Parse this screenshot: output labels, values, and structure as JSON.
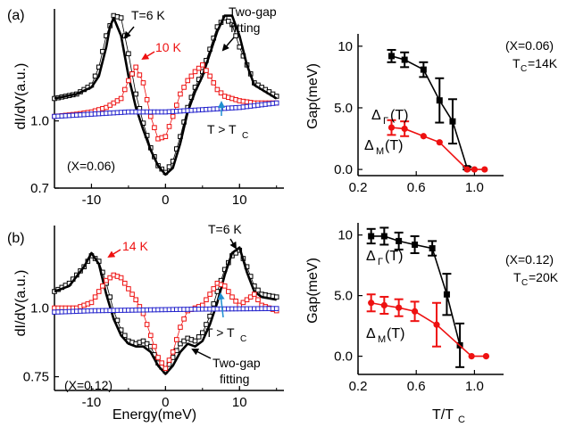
{
  "colors": {
    "black": "#000000",
    "red": "#ee1111",
    "blue": "#2222cc",
    "arrow_red": "#ee1111",
    "arrow_blue": "#1f8fd0"
  },
  "chart_data": [
    {
      "id": "a-left",
      "type": "line",
      "panel_label": "(a)",
      "xlim": [
        -15,
        16
      ],
      "ylim": [
        0.7,
        1.5
      ],
      "x_ticks": [
        -10,
        0,
        10
      ],
      "y_ticks": [
        {
          "value": 1.0,
          "label": "1.0"
        },
        {
          "value": 0.7,
          "label": "0.7"
        }
      ],
      "ylabel": "dI/dV(a.u.)",
      "annotations": [
        "T=6 K",
        "Two-gap",
        "fitting",
        "10 K",
        "T > T",
        "C",
        "(X=0.06)"
      ],
      "series": [
        {
          "role": "data-6K",
          "color": "#000000",
          "marker": "open-square",
          "x": [
            -15,
            -12,
            -10,
            -9,
            -8,
            -7,
            -6,
            -5,
            -4,
            -3,
            -2,
            -1,
            0,
            1,
            2,
            3,
            4,
            5,
            6,
            7,
            8,
            9,
            10,
            12,
            15
          ],
          "y": [
            1.1,
            1.12,
            1.16,
            1.24,
            1.38,
            1.47,
            1.46,
            1.3,
            1.12,
            0.99,
            0.88,
            0.8,
            0.77,
            0.82,
            0.93,
            1.06,
            1.15,
            1.22,
            1.32,
            1.42,
            1.46,
            1.43,
            1.33,
            1.17,
            1.11
          ]
        },
        {
          "role": "two-gap-fit",
          "color": "#000000",
          "marker": "none",
          "x": [
            -15,
            -12,
            -10,
            -9,
            -8,
            -7.5,
            -7,
            -6,
            -5,
            -4,
            -3,
            -2,
            -1,
            0,
            1,
            2,
            3,
            4,
            5,
            6,
            7,
            8,
            9,
            10,
            11,
            12,
            15
          ],
          "y": [
            1.1,
            1.12,
            1.15,
            1.2,
            1.33,
            1.42,
            1.46,
            1.38,
            1.2,
            1.06,
            0.96,
            0.87,
            0.8,
            0.76,
            0.79,
            0.9,
            1.04,
            1.13,
            1.2,
            1.3,
            1.4,
            1.47,
            1.47,
            1.38,
            1.25,
            1.16,
            1.1
          ]
        },
        {
          "role": "data-10K",
          "color": "#ee1111",
          "marker": "open-square",
          "x": [
            -15,
            -12,
            -10,
            -8,
            -6,
            -5,
            -4,
            -3,
            -2,
            -1,
            0,
            1,
            2,
            3,
            4,
            5,
            6,
            7,
            8,
            9,
            10,
            12,
            15
          ],
          "y": [
            1.02,
            1.03,
            1.04,
            1.06,
            1.1,
            1.18,
            1.24,
            1.17,
            1.02,
            0.92,
            0.93,
            1.02,
            1.12,
            1.18,
            1.22,
            1.25,
            1.2,
            1.14,
            1.11,
            1.1,
            1.09,
            1.08,
            1.08
          ]
        },
        {
          "role": "data-above-Tc",
          "color": "#2222cc",
          "marker": "open-square",
          "x": [
            -15,
            -10,
            -5,
            0,
            5,
            10,
            15
          ],
          "y": [
            1.02,
            1.03,
            1.04,
            1.04,
            1.05,
            1.06,
            1.08
          ]
        }
      ]
    },
    {
      "id": "a-right",
      "type": "line",
      "xlim": [
        0.2,
        1.2
      ],
      "ylim": [
        -0.5,
        11
      ],
      "x_ticks": [
        {
          "value": 0.2,
          "label": "0.2"
        },
        {
          "value": 0.6,
          "label": "0.6"
        },
        {
          "value": 1.0,
          "label": "1.0"
        }
      ],
      "y_ticks": [
        {
          "value": 10,
          "label": "10"
        },
        {
          "value": 5,
          "label": "5.0"
        },
        {
          "value": 0,
          "label": "0.0"
        }
      ],
      "ylabel": "Gap(meV)",
      "annotations": [
        "(X=0.06)",
        "T",
        "C",
        "=14K",
        "Δ",
        "Γ",
        "(T)",
        "Δ",
        "M",
        "(T)"
      ],
      "series": [
        {
          "role": "gamma-gap",
          "color": "#000000",
          "marker": "filled-square",
          "x": [
            0.43,
            0.52,
            0.65,
            0.76,
            0.85,
            0.95
          ],
          "y": [
            9.2,
            8.9,
            8.1,
            5.6,
            3.9,
            0.1
          ],
          "yerr": [
            0.5,
            0.6,
            0.6,
            1.8,
            1.8,
            0.1
          ]
        },
        {
          "role": "M-gap",
          "color": "#ee1111",
          "marker": "filled-circle",
          "x": [
            0.43,
            0.52,
            0.65,
            0.76,
            0.95,
            1.0,
            1.07
          ],
          "y": [
            3.4,
            3.3,
            2.7,
            2.2,
            0.0,
            0.0,
            0.0
          ],
          "yerr": [
            0.6,
            0.6,
            0,
            0,
            0,
            0,
            0
          ]
        }
      ]
    },
    {
      "id": "b-left",
      "type": "line",
      "panel_label": "(b)",
      "xlim": [
        -15,
        16
      ],
      "ylim": [
        0.7,
        1.3
      ],
      "x_ticks": [
        -10,
        0,
        10
      ],
      "y_ticks": [
        {
          "value": 1.0,
          "label": "1.0"
        },
        {
          "value": 0.75,
          "label": "0.75"
        }
      ],
      "ylabel": "dI/dV(a.u.)",
      "xlabel": "Energy(meV)",
      "annotations": [
        "T=6 K",
        "14 K",
        "T > T",
        "C",
        "(X=0.12)",
        "Two-gap",
        "fitting"
      ],
      "series": [
        {
          "role": "data-6K",
          "color": "#000000",
          "marker": "open-square",
          "x": [
            -15,
            -13,
            -11,
            -10,
            -9,
            -8,
            -7,
            -6,
            -5,
            -4,
            -3,
            -2,
            -1,
            0,
            1,
            2,
            3,
            4,
            5,
            6,
            7,
            8,
            9,
            10,
            11,
            12,
            13,
            15
          ],
          "y": [
            1.06,
            1.09,
            1.15,
            1.19,
            1.17,
            1.09,
            0.99,
            0.92,
            0.88,
            0.87,
            0.88,
            0.86,
            0.8,
            0.77,
            0.82,
            0.87,
            0.89,
            0.88,
            0.91,
            0.97,
            1.06,
            1.14,
            1.19,
            1.21,
            1.15,
            1.08,
            1.05,
            1.04
          ]
        },
        {
          "role": "two-gap-fit",
          "color": "#000000",
          "marker": "none",
          "x": [
            -15,
            -13,
            -11,
            -10,
            -9,
            -8,
            -7,
            -6,
            -5,
            -4,
            -3,
            -2,
            -1,
            0,
            1,
            2,
            3,
            4,
            5,
            6,
            7,
            8,
            9,
            10,
            11,
            12,
            13,
            15
          ],
          "y": [
            1.06,
            1.08,
            1.15,
            1.2,
            1.16,
            1.05,
            0.96,
            0.9,
            0.87,
            0.86,
            0.86,
            0.84,
            0.79,
            0.76,
            0.79,
            0.84,
            0.87,
            0.86,
            0.88,
            0.94,
            1.02,
            1.12,
            1.2,
            1.22,
            1.13,
            1.06,
            1.04,
            1.03
          ]
        },
        {
          "role": "data-14K",
          "color": "#ee1111",
          "marker": "open-square",
          "x": [
            -15,
            -12,
            -10,
            -9,
            -8,
            -7,
            -6,
            -5,
            -4,
            -3,
            -2,
            -1,
            0,
            1,
            2,
            3,
            4,
            5,
            6,
            7,
            8,
            9,
            10,
            11,
            12,
            13,
            15
          ],
          "y": [
            1.0,
            1.0,
            1.02,
            1.06,
            1.1,
            1.12,
            1.11,
            1.07,
            1.03,
            0.98,
            0.9,
            0.82,
            0.78,
            0.84,
            0.93,
            0.99,
            1.0,
            1.01,
            1.05,
            1.09,
            1.08,
            1.04,
            1.01,
            1.03,
            1.05,
            1.01,
            0.99
          ]
        },
        {
          "role": "data-above-Tc",
          "color": "#2222cc",
          "marker": "open-square",
          "x": [
            -15,
            -10,
            -5,
            0,
            5,
            10,
            15
          ],
          "y": [
            0.985,
            0.99,
            0.992,
            0.994,
            0.996,
            0.997,
            0.998
          ]
        }
      ]
    },
    {
      "id": "b-right",
      "type": "line",
      "xlim": [
        0.2,
        1.2
      ],
      "ylim": [
        -1.5,
        11
      ],
      "x_ticks": [
        {
          "value": 0.2,
          "label": "0.2"
        },
        {
          "value": 0.6,
          "label": "0.6"
        },
        {
          "value": 1.0,
          "label": "1.0"
        }
      ],
      "y_ticks": [
        {
          "value": 10,
          "label": "10"
        },
        {
          "value": 5,
          "label": "5.0"
        },
        {
          "value": 0,
          "label": "0.0"
        }
      ],
      "ylabel": "Gap(meV)",
      "xlabel": "T/T",
      "xlabel_sub": "C",
      "annotations": [
        "(X=0.12)",
        "T",
        "C",
        "=20K",
        "Δ",
        "Γ",
        "(T)",
        "Δ",
        "M",
        "(T)"
      ],
      "series": [
        {
          "role": "gamma-gap",
          "color": "#000000",
          "marker": "filled-square",
          "x": [
            0.29,
            0.38,
            0.48,
            0.59,
            0.71,
            0.81,
            0.9
          ],
          "y": [
            9.9,
            9.9,
            9.5,
            9.2,
            8.9,
            5.1,
            0.9
          ],
          "yerr": [
            0.6,
            0.7,
            0.7,
            0.7,
            0.6,
            1.7,
            1.8
          ]
        },
        {
          "role": "M-gap",
          "color": "#ee1111",
          "marker": "filled-circle",
          "x": [
            0.29,
            0.38,
            0.48,
            0.59,
            0.74,
            0.98,
            1.08
          ],
          "y": [
            4.4,
            4.2,
            4.0,
            3.7,
            2.6,
            0.0,
            0.0
          ],
          "yerr": [
            0.7,
            0.7,
            0.7,
            0.8,
            1.8,
            0,
            0
          ]
        }
      ]
    }
  ]
}
